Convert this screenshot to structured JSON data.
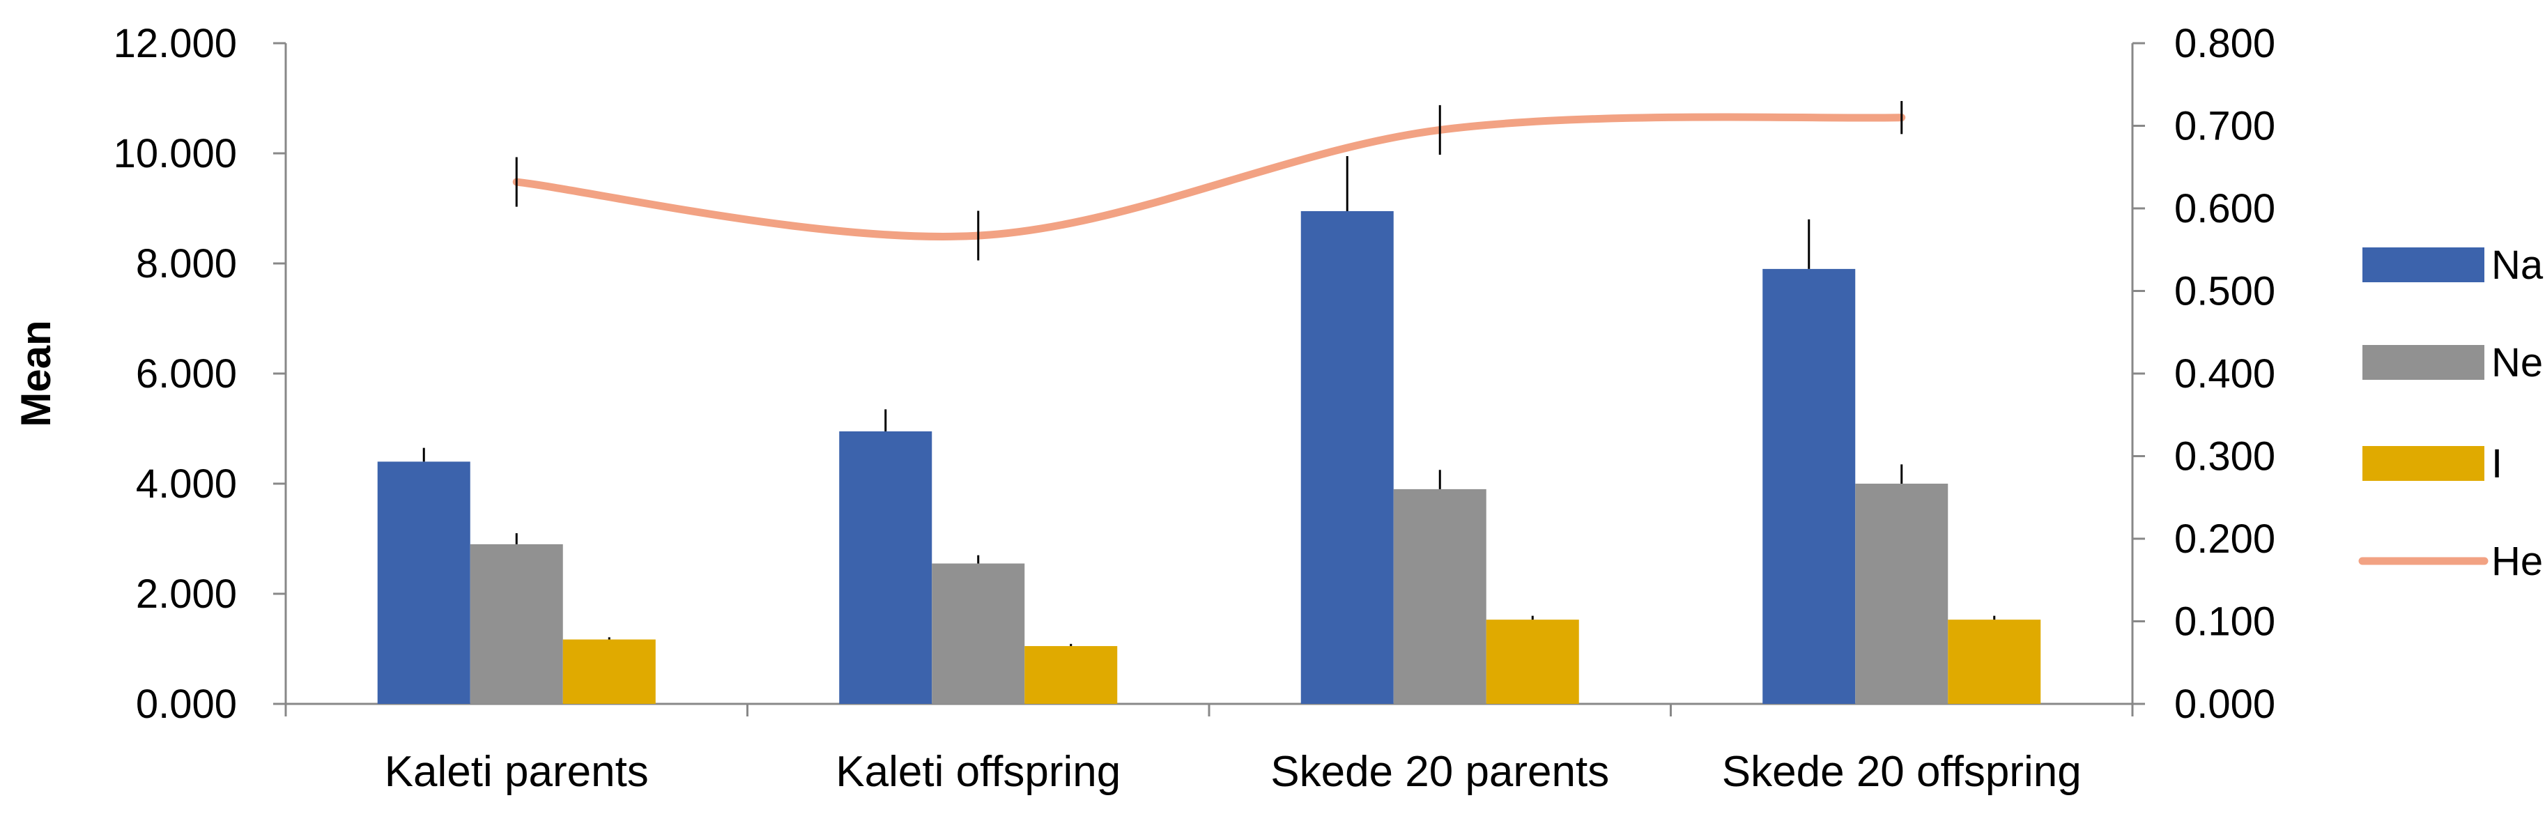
{
  "chart_data": {
    "type": "bar",
    "title": "",
    "categories": [
      "Kaleti parents",
      "Kaleti offspring",
      "Skede 20 parents",
      "Skede 20 offspring"
    ],
    "ylabel": "Mean",
    "ylim": [
      0,
      12
    ],
    "ytick_labels": [
      "0.000",
      "2.000",
      "4.000",
      "6.000",
      "8.000",
      "10.000",
      "12.000"
    ],
    "y2lim": [
      0,
      0.8
    ],
    "y2tick_labels": [
      "0.000",
      "0.100",
      "0.200",
      "0.300",
      "0.400",
      "0.500",
      "0.600",
      "0.700",
      "0.800"
    ],
    "legend_position": "right",
    "series": [
      {
        "name": "Na",
        "kind": "bar",
        "axis": "left",
        "color": "#3c63ac",
        "values": [
          4.4,
          4.95,
          8.95,
          7.9
        ],
        "errors": [
          0.25,
          0.4,
          1.0,
          0.9
        ]
      },
      {
        "name": "Ne",
        "kind": "bar",
        "axis": "left",
        "color": "#919191",
        "values": [
          2.9,
          2.55,
          3.9,
          4.0
        ],
        "errors": [
          0.2,
          0.15,
          0.35,
          0.35
        ]
      },
      {
        "name": "I",
        "kind": "bar",
        "axis": "left",
        "color": "#e0aa00",
        "values": [
          1.17,
          1.05,
          1.53,
          1.53
        ],
        "errors": [
          0.04,
          0.04,
          0.07,
          0.07
        ]
      },
      {
        "name": "He",
        "kind": "line",
        "axis": "right",
        "color": "#f2a283",
        "values": [
          0.632,
          0.567,
          0.695,
          0.71
        ],
        "errors": [
          0.03,
          0.03,
          0.03,
          0.02
        ]
      }
    ]
  }
}
